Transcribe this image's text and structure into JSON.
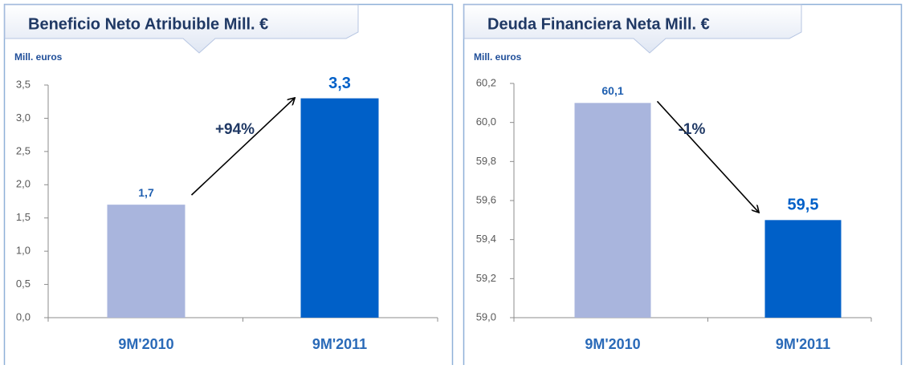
{
  "chart_data": [
    {
      "type": "bar",
      "title": "Beneficio Neto Atribuible Mill. €",
      "unit_label": "Mill. euros",
      "categories": [
        "9M'2010",
        "9M'2011"
      ],
      "values": [
        1.7,
        3.3
      ],
      "value_labels": [
        "1,7",
        "3,3"
      ],
      "colors": [
        "#a9b5dd",
        "#0060c8"
      ],
      "annotation": "+94%",
      "ylim": [
        0,
        3.5
      ],
      "yticks": [
        {
          "value": 0,
          "label": "0,0"
        },
        {
          "value": 0.5,
          "label": "0,5"
        },
        {
          "value": 1,
          "label": "1,0"
        },
        {
          "value": 1.5,
          "label": "1,5"
        },
        {
          "value": 2,
          "label": "2,0"
        },
        {
          "value": 2.5,
          "label": "2,5"
        },
        {
          "value": 3,
          "label": "3,0"
        },
        {
          "value": 3.5,
          "label": "3,5"
        }
      ]
    },
    {
      "type": "bar",
      "title": "Deuda Financiera Neta Mill. €",
      "unit_label": "Mill. euros",
      "categories": [
        "9M'2010",
        "9M'2011"
      ],
      "values": [
        60.1,
        59.5
      ],
      "value_labels": [
        "60,1",
        "59,5"
      ],
      "colors": [
        "#a9b5dd",
        "#0060c8"
      ],
      "annotation": "-1%",
      "ylim": [
        59,
        60.2
      ],
      "yticks": [
        {
          "value": 59,
          "label": "59,0"
        },
        {
          "value": 59.2,
          "label": "59,2"
        },
        {
          "value": 59.4,
          "label": "59,4"
        },
        {
          "value": 59.6,
          "label": "59,6"
        },
        {
          "value": 59.8,
          "label": "59,8"
        },
        {
          "value": 60,
          "label": "60,0"
        },
        {
          "value": 60.2,
          "label": "60,2"
        }
      ]
    }
  ]
}
